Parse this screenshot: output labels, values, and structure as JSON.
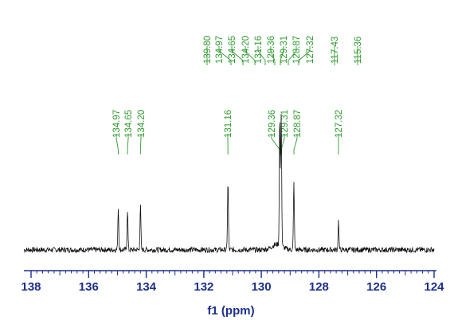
{
  "chart_data": {
    "type": "line",
    "xlabel": "f1 (ppm)",
    "xlim": [
      138,
      124
    ],
    "x_reversed": true,
    "x_ticks": [
      "138",
      "136",
      "134",
      "132",
      "130",
      "128",
      "126",
      "124"
    ],
    "grid": false,
    "legend": "none",
    "y_relative_range": [
      0,
      1
    ],
    "top_peak_labels": [
      "139.80",
      "134.97",
      "134.65",
      "134.20",
      "131.16",
      "129.36",
      "129.31",
      "128.87",
      "127.32",
      "117.43",
      "115.36"
    ],
    "inset_peak_labels": [
      "134.97",
      "134.65",
      "134.20",
      "131.16",
      "129.36",
      "129.31",
      "128.87",
      "127.32"
    ],
    "peaks": [
      {
        "ppm": 134.97,
        "height": 0.19
      },
      {
        "ppm": 134.65,
        "height": 0.18
      },
      {
        "ppm": 134.2,
        "height": 0.2
      },
      {
        "ppm": 131.16,
        "height": 0.31
      },
      {
        "ppm": 129.36,
        "height": 0.58
      },
      {
        "ppm": 129.31,
        "height": 0.6
      },
      {
        "ppm": 128.87,
        "height": 0.3
      },
      {
        "ppm": 127.32,
        "height": 0.13
      }
    ],
    "baseline_level": 0.04,
    "noise_amplitude": 0.012
  },
  "colors": {
    "spectrum": "#111111",
    "axis": "#1c2f8a",
    "label": "#2d9a2d"
  }
}
